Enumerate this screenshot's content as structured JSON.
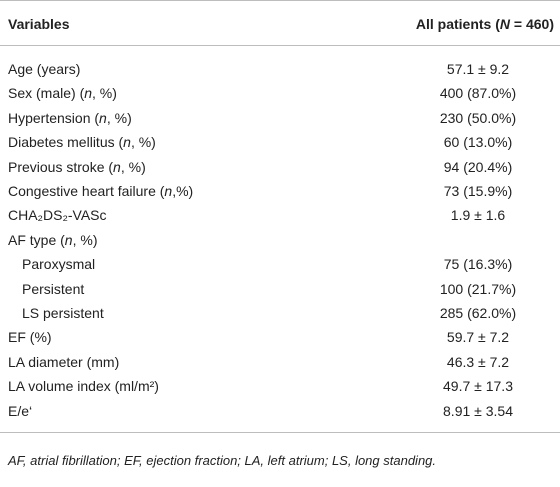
{
  "table": {
    "header": {
      "label": [
        {
          "text": "Variables",
          "italic": false
        }
      ],
      "value": [
        {
          "text": "All patients (",
          "italic": false
        },
        {
          "text": "N",
          "italic": true
        },
        {
          "text": " = 460)",
          "italic": false
        }
      ]
    },
    "rows": [
      {
        "label": [
          {
            "text": "Age (years)",
            "italic": false
          }
        ],
        "value": "57.1 ± 9.2",
        "indent": false
      },
      {
        "label": [
          {
            "text": "Sex (male) (",
            "italic": false
          },
          {
            "text": "n",
            "italic": true
          },
          {
            "text": ", %)",
            "italic": false
          }
        ],
        "value": "400 (87.0%)",
        "indent": false
      },
      {
        "label": [
          {
            "text": "Hypertension (",
            "italic": false
          },
          {
            "text": "n",
            "italic": true
          },
          {
            "text": ", %)",
            "italic": false
          }
        ],
        "value": "230 (50.0%)",
        "indent": false
      },
      {
        "label": [
          {
            "text": "Diabetes mellitus (",
            "italic": false
          },
          {
            "text": "n",
            "italic": true
          },
          {
            "text": ", %)",
            "italic": false
          }
        ],
        "value": "60 (13.0%)",
        "indent": false
      },
      {
        "label": [
          {
            "text": "Previous stroke (",
            "italic": false
          },
          {
            "text": "n",
            "italic": true
          },
          {
            "text": ", %)",
            "italic": false
          }
        ],
        "value": "94 (20.4%)",
        "indent": false
      },
      {
        "label": [
          {
            "text": "Congestive heart failure (",
            "italic": false
          },
          {
            "text": "n",
            "italic": true
          },
          {
            "text": ",%)",
            "italic": false
          }
        ],
        "value": "73 (15.9%)",
        "indent": false
      },
      {
        "label": [
          {
            "text": "CHA₂DS₂-VASc",
            "italic": false
          }
        ],
        "value": "1.9 ± 1.6",
        "indent": false
      },
      {
        "label": [
          {
            "text": "AF type (",
            "italic": false
          },
          {
            "text": "n",
            "italic": true
          },
          {
            "text": ", %)",
            "italic": false
          }
        ],
        "value": null,
        "indent": false
      },
      {
        "label": [
          {
            "text": "Paroxysmal",
            "italic": false
          }
        ],
        "value": "75 (16.3%)",
        "indent": true
      },
      {
        "label": [
          {
            "text": "Persistent",
            "italic": false
          }
        ],
        "value": "100 (21.7%)",
        "indent": true
      },
      {
        "label": [
          {
            "text": "LS persistent",
            "italic": false
          }
        ],
        "value": "285 (62.0%)",
        "indent": true
      },
      {
        "label": [
          {
            "text": "EF (%)",
            "italic": false
          }
        ],
        "value": "59.7 ± 7.2",
        "indent": false
      },
      {
        "label": [
          {
            "text": "LA diameter (mm)",
            "italic": false
          }
        ],
        "value": "46.3 ± 7.2",
        "indent": false
      },
      {
        "label": [
          {
            "text": "LA volume index (ml/m²)",
            "italic": false
          }
        ],
        "value": "49.7 ± 17.3",
        "indent": false
      },
      {
        "label": [
          {
            "text": "E/e‘",
            "italic": false
          }
        ],
        "value": "8.91 ± 3.54",
        "indent": false
      }
    ],
    "footnote": "AF, atrial fibrillation; EF, ejection fraction; LA, left atrium; LS, long standing."
  }
}
